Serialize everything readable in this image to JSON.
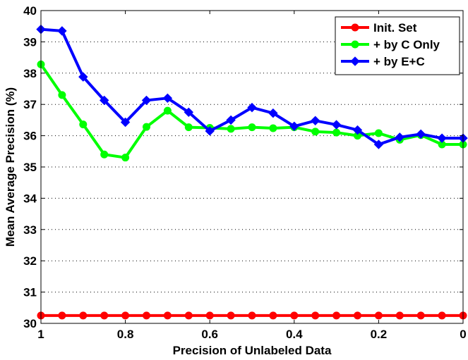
{
  "chart_data": {
    "type": "line",
    "title": "",
    "xlabel": "Precision of Unlabeled Data",
    "ylabel": "Mean Average Precision (%)",
    "xlim": [
      1,
      0
    ],
    "ylim": [
      30,
      40
    ],
    "x_reversed": true,
    "grid": "y-dotted",
    "legend_position": "top-right",
    "xticks": [
      1,
      0.8,
      0.6,
      0.4,
      0.2,
      0
    ],
    "xtick_labels": [
      "1",
      "0.8",
      "0.6",
      "0.4",
      "0.2",
      "0"
    ],
    "yticks": [
      30,
      31,
      32,
      33,
      34,
      35,
      36,
      37,
      38,
      39,
      40
    ],
    "ytick_labels": [
      "30",
      "31",
      "32",
      "33",
      "34",
      "35",
      "36",
      "37",
      "38",
      "39",
      "40"
    ],
    "x": [
      1.0,
      0.95,
      0.9,
      0.85,
      0.8,
      0.75,
      0.7,
      0.65,
      0.6,
      0.55,
      0.5,
      0.45,
      0.4,
      0.35,
      0.3,
      0.25,
      0.2,
      0.15,
      0.1,
      0.05,
      0.0
    ],
    "series": [
      {
        "name": "Init. Set",
        "color": "#ff0000",
        "marker": "circle",
        "values": [
          30.25,
          30.25,
          30.25,
          30.25,
          30.25,
          30.25,
          30.25,
          30.25,
          30.25,
          30.25,
          30.25,
          30.25,
          30.25,
          30.25,
          30.25,
          30.25,
          30.25,
          30.25,
          30.25,
          30.25,
          30.25
        ]
      },
      {
        "name": "+ by C Only",
        "color": "#00ff00",
        "marker": "circle",
        "values": [
          38.28,
          37.3,
          36.36,
          35.4,
          35.3,
          36.28,
          36.8,
          36.27,
          36.25,
          36.22,
          36.27,
          36.24,
          36.27,
          36.13,
          36.1,
          36.0,
          36.08,
          35.87,
          36.02,
          35.72,
          35.72
        ]
      },
      {
        "name": "+ by E+C",
        "color": "#0000ff",
        "marker": "diamond",
        "values": [
          39.4,
          39.35,
          37.88,
          37.13,
          36.43,
          37.13,
          37.2,
          36.75,
          36.15,
          36.5,
          36.9,
          36.72,
          36.3,
          36.48,
          36.35,
          36.18,
          35.72,
          35.95,
          36.05,
          35.92,
          35.92
        ]
      }
    ]
  }
}
